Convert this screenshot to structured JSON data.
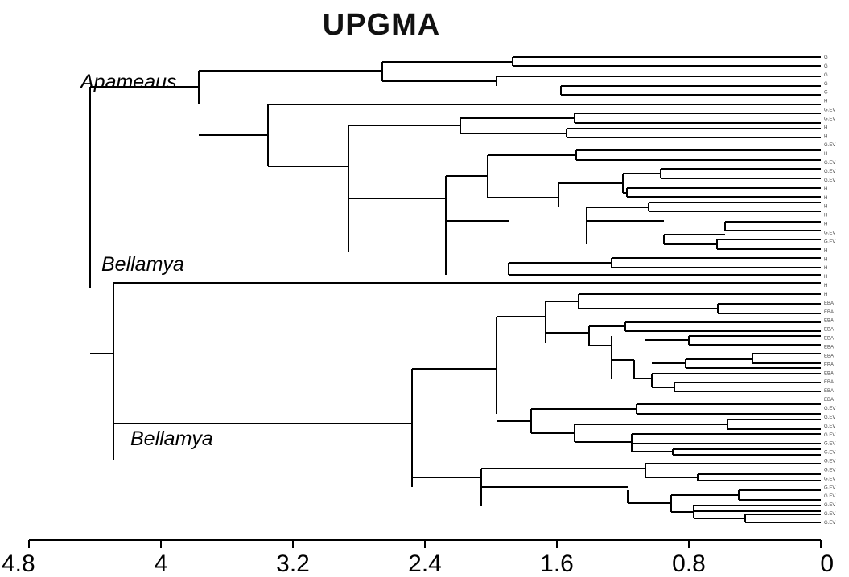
{
  "title": "UPGMA",
  "clade_labels": {
    "apameaus": "Apameaus",
    "bellamya_1": "Bellamya",
    "bellamya_2": "Bellamya"
  },
  "axis": {
    "ticks": [
      "4.8",
      "4",
      "3.2",
      "2.4",
      "1.6",
      "0.8",
      "0"
    ]
  },
  "leaves": [
    "G",
    "G",
    "G",
    "G",
    "G",
    "H",
    "G.EV",
    "G.EV",
    "H",
    "H",
    "G.EV",
    "H",
    "G.EV",
    "G.EV",
    "G.EV",
    "H",
    "H",
    "H",
    "H",
    "H",
    "G.EV",
    "G.EV",
    "H",
    "H",
    "H",
    "H",
    "H",
    "H",
    "EBA",
    "EBA",
    "EBA",
    "EBA",
    "EBA",
    "EBA",
    "EBA",
    "EBA",
    "EBA",
    "EBA",
    "EBA",
    "EBA",
    "G.EV",
    "G.EV",
    "G.EV",
    "G.EV",
    "G.EV",
    "G.EV",
    "G.EV",
    "G.EV",
    "G.EV",
    "G.EV",
    "G.EV",
    "G.EV",
    "G.EV",
    "G.EV"
  ],
  "chart_data": {
    "type": "dendrogram",
    "method": "UPGMA",
    "xlim": [
      4.8,
      0
    ],
    "leaf_count": 54,
    "merge_heights_approx": [
      4.4,
      4.18,
      3.7,
      3.38,
      2.72,
      2.55,
      2.2,
      2.0,
      1.9,
      1.76,
      1.5,
      1.4,
      1.2,
      1.0,
      0.7
    ]
  },
  "colors": {
    "lines": "#000000",
    "background": "#ffffff"
  }
}
